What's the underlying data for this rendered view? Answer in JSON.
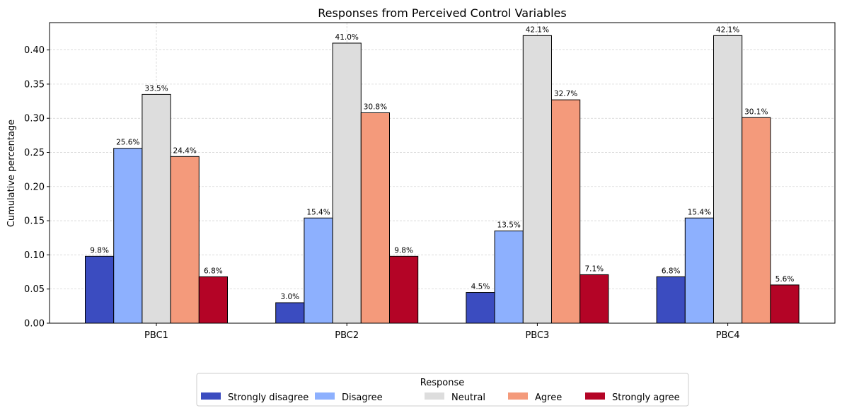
{
  "chart_data": {
    "type": "bar",
    "title": "Responses from Perceived Control Variables",
    "xlabel": "",
    "ylabel": "Cumulative percentage",
    "categories": [
      "PBC1",
      "PBC2",
      "PBC3",
      "PBC4"
    ],
    "ylim": [
      0,
      0.44
    ],
    "yticks": [
      0.0,
      0.05,
      0.1,
      0.15,
      0.2,
      0.25,
      0.3,
      0.35,
      0.4
    ],
    "ytick_labels": [
      "0.00",
      "0.05",
      "0.10",
      "0.15",
      "0.20",
      "0.25",
      "0.30",
      "0.35",
      "0.40"
    ],
    "grid": true,
    "legend_title": "Response",
    "legend_position": "bottom-center",
    "series": [
      {
        "name": "Strongly disagree",
        "color": "#3b4cc0",
        "values": [
          0.098,
          0.03,
          0.045,
          0.068
        ],
        "labels": [
          "9.8%",
          "3.0%",
          "4.5%",
          "6.8%"
        ]
      },
      {
        "name": "Disagree",
        "color": "#8db0fe",
        "values": [
          0.256,
          0.154,
          0.135,
          0.154
        ],
        "labels": [
          "25.6%",
          "15.4%",
          "13.5%",
          "15.4%"
        ]
      },
      {
        "name": "Neutral",
        "color": "#dddddd",
        "values": [
          0.335,
          0.41,
          0.421,
          0.421
        ],
        "labels": [
          "33.5%",
          "41.0%",
          "42.1%",
          "42.1%"
        ]
      },
      {
        "name": "Agree",
        "color": "#f49a7b",
        "values": [
          0.244,
          0.308,
          0.327,
          0.301
        ],
        "labels": [
          "24.4%",
          "30.8%",
          "32.7%",
          "30.1%"
        ]
      },
      {
        "name": "Strongly agree",
        "color": "#b40426",
        "values": [
          0.068,
          0.098,
          0.071,
          0.056
        ],
        "labels": [
          "6.8%",
          "9.8%",
          "7.1%",
          "5.6%"
        ]
      }
    ]
  }
}
